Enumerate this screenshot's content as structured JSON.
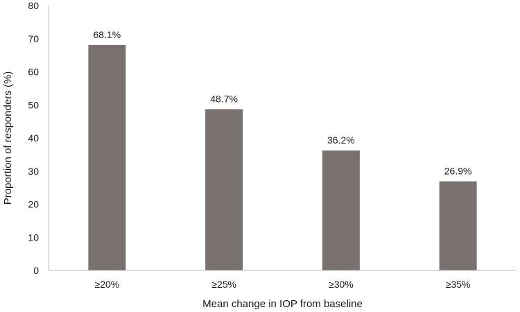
{
  "chart_data": {
    "type": "bar",
    "title": "",
    "xlabel": "Mean change in IOP from baseline",
    "ylabel": "Proportion of responders (%)",
    "categories": [
      "≥20%",
      "≥25%",
      "≥30%",
      "≥35%"
    ],
    "values": [
      68.1,
      48.7,
      36.2,
      26.9
    ],
    "data_labels": [
      "68.1%",
      "48.7%",
      "36.2%",
      "26.9%"
    ],
    "ylim": [
      0,
      80
    ],
    "yticks": [
      0,
      10,
      20,
      30,
      40,
      50,
      60,
      70,
      80
    ],
    "bar_color": "#787170",
    "grid": false,
    "legend": "none"
  }
}
